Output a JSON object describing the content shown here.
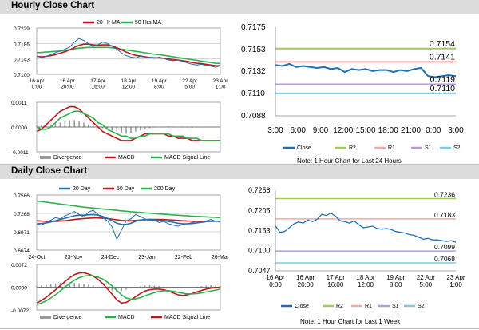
{
  "sections": {
    "hourly_title": "Hourly Close Chart",
    "daily_title": "Daily Close Chart"
  },
  "colors": {
    "close": "#1f6fb2",
    "ma_short": "#c0161c",
    "ma_long": "#2bb24c",
    "r2": "#9acd5a",
    "r1": "#f4a6a6",
    "s1": "#b59be0",
    "s2": "#7fc9e8",
    "divergence": "#9a9a9a",
    "grid": "#c9c9c9"
  },
  "chart_data": [
    {
      "id": "hourly-close",
      "type": "line",
      "y_ticks": [
        "0.7229",
        "0.7186",
        "0.7143",
        "0.7100"
      ],
      "ylim": [
        0.71,
        0.7229
      ],
      "x_ticks": [
        "16 Apr\n0:00",
        "16 Apr\n20:00",
        "17 Apr\n16:00",
        "18 Apr\n12:00",
        "19 Apr\n8:00",
        "22 Apr\n5:00",
        "23 Apr\n1:00"
      ],
      "legend": [
        "20 Hr MA",
        "50 Hrs MA"
      ],
      "series": [
        {
          "name": "Close",
          "color": "#1f6fb2",
          "values": [
            0.7152,
            0.7146,
            0.715,
            0.7155,
            0.716,
            0.7165,
            0.717,
            0.7176,
            0.719,
            0.72,
            0.7194,
            0.7185,
            0.7178,
            0.7182,
            0.719,
            0.7186,
            0.7178,
            0.717,
            0.716,
            0.7152,
            0.7148,
            0.7146,
            0.715,
            0.7148,
            0.7146,
            0.7145,
            0.7148,
            0.7144,
            0.714,
            0.7138,
            0.714,
            0.7136,
            0.7132,
            0.7128,
            0.7126,
            0.7128,
            0.7125,
            0.7123,
            0.712,
            0.7124
          ]
        },
        {
          "name": "20 Hr MA",
          "color": "#c0161c",
          "values": [
            0.715,
            0.7149,
            0.715,
            0.7152,
            0.7155,
            0.7159,
            0.7163,
            0.7168,
            0.7175,
            0.7181,
            0.7184,
            0.7184,
            0.7182,
            0.7181,
            0.7182,
            0.7182,
            0.7179,
            0.7174,
            0.7168,
            0.7162,
            0.7157,
            0.7153,
            0.7151,
            0.7149,
            0.7147,
            0.7146,
            0.7146,
            0.7145,
            0.7143,
            0.7141,
            0.714,
            0.7138,
            0.7136,
            0.7133,
            0.7131,
            0.713,
            0.7128,
            0.7126,
            0.7124,
            0.7124
          ]
        },
        {
          "name": "50 Hrs MA",
          "color": "#2bb24c",
          "values": [
            0.716,
            0.7161,
            0.7162,
            0.7163,
            0.7164,
            0.7165,
            0.7167,
            0.7169,
            0.7171,
            0.7173,
            0.7174,
            0.7175,
            0.7175,
            0.7175,
            0.7175,
            0.7175,
            0.7174,
            0.7172,
            0.717,
            0.7168,
            0.7166,
            0.7164,
            0.7162,
            0.716,
            0.7158,
            0.7156,
            0.7155,
            0.7153,
            0.7151,
            0.7149,
            0.7147,
            0.7145,
            0.7143,
            0.7141,
            0.7139,
            0.7137,
            0.7135,
            0.7133,
            0.7131,
            0.713
          ]
        }
      ]
    },
    {
      "id": "hourly-macd",
      "type": "line",
      "y_ticks": [
        "0.0011",
        "0.0000",
        "-0.0011"
      ],
      "ylim": [
        -0.0011,
        0.0011
      ],
      "legend": [
        "Divergence",
        "MACD",
        "MACD Signal Line"
      ],
      "divergence": [
        5e-05,
        8e-05,
        0.0001,
        0.00012,
        0.00015,
        0.0002,
        0.00025,
        0.0003,
        0.0003,
        0.00025,
        0.0002,
        0.00012,
        5e-05,
        -2e-05,
        -5e-05,
        -0.0001,
        -0.00015,
        -0.0002,
        -0.00025,
        -0.0003,
        -0.00025,
        -0.0002,
        -0.00015,
        -0.0001,
        -5e-05,
        -2e-05,
        0,
        2e-05,
        3e-05,
        2e-05,
        0,
        -2e-05,
        -2e-05,
        -3e-05,
        -2e-05,
        -1e-05,
        0,
        1e-05,
        0,
        0
      ],
      "series": [
        {
          "name": "MACD",
          "color": "#c0161c",
          "values": [
            -0.0002,
            -0.0001,
            0.0001,
            0.0003,
            0.0005,
            0.0007,
            0.0008,
            0.0009,
            0.0009,
            0.0008,
            0.0006,
            0.0004,
            0.0002,
            0.0,
            -0.0002,
            -0.0003,
            -0.0004,
            -0.0005,
            -0.0006,
            -0.0006,
            -0.0006,
            -0.0005,
            -0.0004,
            -0.0003,
            -0.0003,
            -0.0003,
            -0.0003,
            -0.0003,
            -0.0004,
            -0.0004,
            -0.0005,
            -0.0005,
            -0.0005,
            -0.0006,
            -0.0006,
            -0.0006,
            -0.0006,
            -0.0006,
            -0.0006,
            -0.0006
          ]
        },
        {
          "name": "MACD Signal Line",
          "color": "#2bb24c",
          "values": [
            0.0,
            -0.0001,
            -0.0001,
            0.0,
            0.0002,
            0.0004,
            0.0005,
            0.0006,
            0.0007,
            0.0007,
            0.0006,
            0.0005,
            0.0004,
            0.0002,
            0.0001,
            -0.0001,
            -0.0002,
            -0.0003,
            -0.0004,
            -0.0004,
            -0.0005,
            -0.0005,
            -0.0004,
            -0.0004,
            -0.0003,
            -0.0003,
            -0.0003,
            -0.0003,
            -0.0003,
            -0.0004,
            -0.0004,
            -0.0004,
            -0.0005,
            -0.0005,
            -0.0005,
            -0.0006,
            -0.0006,
            -0.0006,
            -0.0006,
            -0.0006
          ]
        }
      ]
    },
    {
      "id": "last-24-hours",
      "type": "line",
      "y_ticks": [
        "0.7175",
        "0.7153",
        "0.7132",
        "0.7110",
        "0.7088"
      ],
      "ylim": [
        0.7088,
        0.7175
      ],
      "x_ticks": [
        "3:00",
        "6:00",
        "9:00",
        "12:00",
        "15:00",
        "18:00",
        "21:00",
        "0:00",
        "3:00"
      ],
      "legend": [
        "Close",
        "R2",
        "R1",
        "S1",
        "S2"
      ],
      "levels": [
        {
          "name": "R2",
          "value": 0.7154,
          "label": "0.7154",
          "color": "#9acd5a"
        },
        {
          "name": "R1",
          "value": 0.7141,
          "label": "0.7141",
          "color": "#f4a6a6"
        },
        {
          "name": "S1",
          "value": 0.7119,
          "label": "0.7119",
          "color": "#b59be0"
        },
        {
          "name": "S2",
          "value": 0.711,
          "label": "0.7110",
          "color": "#7fc9e8"
        }
      ],
      "series": [
        {
          "name": "Close",
          "color": "#1f6fb2",
          "values": [
            0.7138,
            0.7137,
            0.7139,
            0.7136,
            0.7137,
            0.7136,
            0.7135,
            0.7136,
            0.7134,
            0.7135,
            0.7131,
            0.7134,
            0.7133,
            0.7134,
            0.7132,
            0.7133,
            0.7133,
            0.7131,
            0.7133,
            0.7132,
            0.7134,
            0.7135,
            0.7127,
            0.7126,
            0.7127,
            0.7128,
            0.7127
          ]
        }
      ],
      "note": "Note: 1 Hour Chart for Last 24 Hours"
    },
    {
      "id": "daily-close",
      "type": "line",
      "y_ticks": [
        "0.7566",
        "0.7268",
        "0.6971",
        "0.6674"
      ],
      "ylim": [
        0.6674,
        0.7566
      ],
      "x_ticks": [
        "24-Oct",
        "23-Nov",
        "24-Dec",
        "23-Jan",
        "22-Feb",
        "26-Mar"
      ],
      "legend": [
        "20 Day",
        "50 Day",
        "200 Day"
      ],
      "series": [
        {
          "name": "Close",
          "color": "#1f6fb2",
          "values": [
            0.709,
            0.708,
            0.712,
            0.716,
            0.72,
            0.718,
            0.723,
            0.726,
            0.73,
            0.725,
            0.721,
            0.729,
            0.732,
            0.725,
            0.72,
            0.715,
            0.705,
            0.685,
            0.7,
            0.715,
            0.718,
            0.725,
            0.722,
            0.718,
            0.715,
            0.716,
            0.712,
            0.714,
            0.71,
            0.708,
            0.706,
            0.709,
            0.71,
            0.712,
            0.714,
            0.712,
            0.715,
            0.717,
            0.714,
            0.713
          ]
        },
        {
          "name": "20 Day",
          "color": "#1f6fb2",
          "values": [
            0.71,
            0.7105,
            0.7115,
            0.713,
            0.715,
            0.717,
            0.719,
            0.721,
            0.723,
            0.724,
            0.724,
            0.7245,
            0.725,
            0.724,
            0.722,
            0.719,
            0.715,
            0.711,
            0.709,
            0.709,
            0.711,
            0.714,
            0.716,
            0.717,
            0.717,
            0.7165,
            0.716,
            0.715,
            0.714,
            0.7125,
            0.711,
            0.71,
            0.71,
            0.7105,
            0.7115,
            0.7125,
            0.7135,
            0.7145,
            0.7145,
            0.714
          ]
        },
        {
          "name": "50 Day",
          "color": "#c0161c",
          "values": [
            0.715,
            0.7145,
            0.714,
            0.714,
            0.714,
            0.7145,
            0.715,
            0.716,
            0.717,
            0.718,
            0.7185,
            0.719,
            0.7195,
            0.7195,
            0.719,
            0.7185,
            0.7175,
            0.7165,
            0.7155,
            0.715,
            0.715,
            0.7155,
            0.716,
            0.7165,
            0.717,
            0.717,
            0.717,
            0.7168,
            0.7165,
            0.716,
            0.7155,
            0.715,
            0.7146,
            0.7143,
            0.7141,
            0.714,
            0.714,
            0.7141,
            0.7142,
            0.7143
          ]
        },
        {
          "name": "200 Day",
          "color": "#2bb24c",
          "values": [
            0.747,
            0.746,
            0.745,
            0.744,
            0.743,
            0.742,
            0.741,
            0.74,
            0.739,
            0.738,
            0.737,
            0.7362,
            0.7355,
            0.7348,
            0.734,
            0.7333,
            0.7325,
            0.7318,
            0.731,
            0.7303,
            0.7296,
            0.729,
            0.7284,
            0.7278,
            0.7272,
            0.7266,
            0.726,
            0.7254,
            0.7249,
            0.7244,
            0.7239,
            0.7234,
            0.7229,
            0.7224,
            0.722,
            0.7216,
            0.7212,
            0.7208,
            0.7204,
            0.72
          ]
        }
      ]
    },
    {
      "id": "daily-macd",
      "type": "line",
      "y_ticks": [
        "0.0072",
        "0.0000",
        "-0.0072"
      ],
      "ylim": [
        -0.0072,
        0.0072
      ],
      "legend": [
        "Divergence",
        "MACD",
        "MACD Signal Line"
      ],
      "divergence": [
        0.0004,
        0.0006,
        0.0008,
        0.001,
        0.0012,
        0.0014,
        0.0015,
        0.0015,
        0.0014,
        0.0012,
        0.001,
        0.0008,
        0.0005,
        0.0002,
        -0.0002,
        -0.0006,
        -0.001,
        -0.0014,
        -0.0012,
        -0.0008,
        -0.0004,
        0.0,
        0.0003,
        0.0005,
        0.0006,
        0.0005,
        0.0004,
        0.0002,
        0.0,
        -0.0002,
        -0.0003,
        -0.0002,
        -0.0001,
        0.0,
        0.0002,
        0.0004,
        0.0005,
        0.0006,
        0.0005,
        0.0004
      ],
      "series": [
        {
          "name": "MACD",
          "color": "#c0161c",
          "values": [
            -0.005,
            -0.0042,
            -0.0032,
            -0.002,
            -0.0008,
            0.0005,
            0.0018,
            0.003,
            0.004,
            0.0045,
            0.0046,
            0.0042,
            0.0035,
            0.0025,
            0.0012,
            -0.0005,
            -0.0022,
            -0.004,
            -0.005,
            -0.0048,
            -0.004,
            -0.003,
            -0.002,
            -0.0012,
            -0.0008,
            -0.0006,
            -0.0006,
            -0.0008,
            -0.0012,
            -0.0018,
            -0.0024,
            -0.0026,
            -0.0024,
            -0.002,
            -0.0015,
            -0.001,
            -0.0006,
            -0.0003,
            -0.0001,
            0.0
          ]
        },
        {
          "name": "MACD Signal Line",
          "color": "#2bb24c",
          "values": [
            -0.0055,
            -0.005,
            -0.0043,
            -0.0034,
            -0.0024,
            -0.0012,
            0.0,
            0.0012,
            0.0022,
            0.003,
            0.0035,
            0.0037,
            0.0036,
            0.0032,
            0.0026,
            0.0016,
            0.0004,
            -0.001,
            -0.0024,
            -0.0034,
            -0.0038,
            -0.0037,
            -0.0033,
            -0.0027,
            -0.0022,
            -0.0017,
            -0.0013,
            -0.0011,
            -0.0011,
            -0.0013,
            -0.0016,
            -0.0019,
            -0.0021,
            -0.0021,
            -0.002,
            -0.0018,
            -0.0015,
            -0.0012,
            -0.0009,
            -0.0006
          ]
        }
      ]
    },
    {
      "id": "last-week",
      "type": "line",
      "y_ticks": [
        "0.7258",
        "0.7205",
        "0.7153",
        "0.7100",
        "0.7047"
      ],
      "ylim": [
        0.7047,
        0.7258
      ],
      "x_ticks": [
        "16 Apr\n0:00",
        "16 Apr\n20:00",
        "17 Apr\n16:00",
        "18 Apr\n12:00",
        "19 Apr\n8:00",
        "22 Apr\n5:00",
        "23 Apr\n1:00"
      ],
      "legend": [
        "Close",
        "R2",
        "R1",
        "S1",
        "S2"
      ],
      "levels": [
        {
          "name": "R2",
          "value": 0.7236,
          "label": "0.7236",
          "color": "#9acd5a"
        },
        {
          "name": "R1",
          "value": 0.7183,
          "label": "0.7183",
          "color": "#f4a6a6"
        },
        {
          "name": "S1",
          "value": 0.7099,
          "label": "0.7099",
          "color": "#b59be0"
        },
        {
          "name": "S2",
          "value": 0.7068,
          "label": "0.7068",
          "color": "#7fc9e8"
        }
      ],
      "series": [
        {
          "name": "Close",
          "color": "#1f6fb2",
          "values": [
            0.7165,
            0.7148,
            0.715,
            0.716,
            0.717,
            0.7175,
            0.7172,
            0.718,
            0.7176,
            0.7182,
            0.7195,
            0.7192,
            0.7198,
            0.719,
            0.7178,
            0.7176,
            0.7172,
            0.7178,
            0.7168,
            0.716,
            0.7162,
            0.7164,
            0.7158,
            0.7156,
            0.7158,
            0.7155,
            0.715,
            0.7148,
            0.7146,
            0.7142,
            0.714,
            0.7135,
            0.713,
            0.7132,
            0.7128,
            0.7128,
            0.7126,
            0.7124,
            0.7126,
            0.7122
          ]
        }
      ],
      "note": "Note: 1 Hour Chart for Last 1 Week"
    }
  ]
}
